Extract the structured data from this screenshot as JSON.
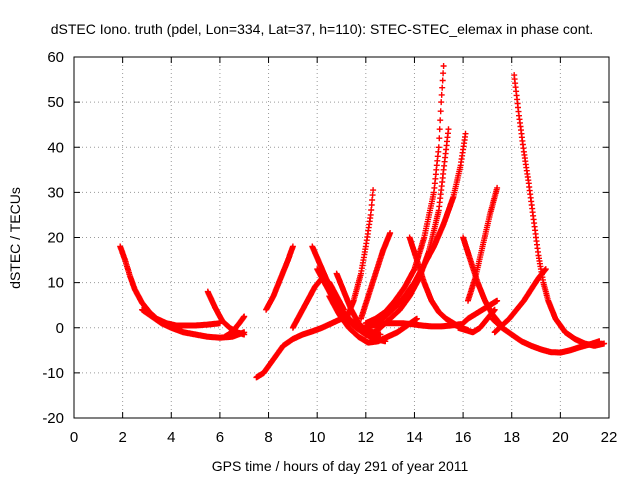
{
  "chart_data": {
    "type": "scatter",
    "title": "dSTEC Iono. truth (pdel, Lon=334, Lat=37, h=110): STEC-STEC_elemax in phase cont.",
    "xlabel": "GPS time / hours of day 291 of year 2011",
    "ylabel": "dSTEC  / TECUs",
    "xlim": [
      0,
      22
    ],
    "ylim": [
      -20,
      60
    ],
    "xticks": [
      0,
      2,
      4,
      6,
      8,
      10,
      12,
      14,
      16,
      18,
      20,
      22
    ],
    "yticks": [
      -20,
      -10,
      0,
      10,
      20,
      30,
      40,
      50,
      60
    ],
    "grid": true,
    "marker": "plus",
    "color": "#ff0000",
    "series": [
      {
        "x": [
          1.9,
          2.1,
          2.3,
          2.5,
          2.8,
          3.1,
          3.4,
          3.8,
          4.2,
          4.6,
          5.0,
          5.5,
          6.0
        ],
        "y": [
          18,
          15,
          11.5,
          8.5,
          5.5,
          3.5,
          2,
          1,
          0.5,
          0.5,
          0.5,
          0.7,
          1
        ]
      },
      {
        "x": [
          2.8,
          3.2,
          3.6,
          4.0,
          4.5,
          5.0,
          5.5,
          6.0,
          6.5,
          7.0
        ],
        "y": [
          4,
          2.5,
          1,
          0,
          -1,
          -1.5,
          -2,
          -2.2,
          -2,
          -1
        ]
      },
      {
        "x": [
          5.5,
          5.8,
          6.1,
          6.4,
          6.7,
          7.0
        ],
        "y": [
          8,
          4.5,
          1.5,
          0,
          -1,
          -1.5
        ]
      },
      {
        "x": [
          6.2,
          6.5,
          6.8,
          7.0
        ],
        "y": [
          -2,
          -1,
          1,
          2.5
        ]
      },
      {
        "x": [
          7.5,
          7.8,
          8.2,
          8.6,
          9.0,
          9.4,
          9.8,
          10.2,
          10.6,
          11.0
        ],
        "y": [
          -11,
          -10,
          -7,
          -4,
          -2.5,
          -1.5,
          -0.8,
          0,
          1,
          2
        ]
      },
      {
        "x": [
          7.9,
          8.2,
          8.5,
          8.8,
          9.0
        ],
        "y": [
          4,
          7,
          11,
          15,
          18
        ]
      },
      {
        "x": [
          9.0,
          9.3,
          9.6,
          9.9,
          10.2,
          10.5,
          10.8,
          11.1
        ],
        "y": [
          0,
          3,
          6,
          9,
          11,
          10,
          7,
          4
        ]
      },
      {
        "x": [
          9.8,
          10.2,
          10.6,
          11.0,
          11.4,
          11.8,
          12.2,
          12.6
        ],
        "y": [
          18,
          13,
          8,
          4,
          1.5,
          0,
          -1,
          -1.5
        ]
      },
      {
        "x": [
          10.0,
          10.4,
          10.8,
          11.2,
          11.6,
          12.0,
          12.4,
          12.8
        ],
        "y": [
          13,
          9,
          5,
          2,
          0,
          -1.5,
          -2.5,
          -3
        ]
      },
      {
        "x": [
          10.5,
          10.9,
          11.3,
          11.7,
          12.1,
          12.5,
          12.9,
          13.3,
          13.7,
          14.1
        ],
        "y": [
          7,
          3,
          0,
          -2,
          -3.3,
          -3,
          -2,
          -1,
          0.5,
          2
        ]
      },
      {
        "x": [
          10.8,
          11.1,
          11.4,
          11.7,
          12.0,
          12.3
        ],
        "y": [
          12,
          8,
          4,
          1,
          -0.5,
          -1
        ]
      },
      {
        "x": [
          11.2,
          11.5,
          11.8,
          12.0,
          12.2,
          12.3
        ],
        "y": [
          2,
          6,
          12,
          18,
          25,
          30.5
        ]
      },
      {
        "x": [
          11.8,
          12.1,
          12.4,
          12.7,
          13.0
        ],
        "y": [
          2,
          7,
          12,
          17,
          21
        ]
      },
      {
        "x": [
          11.9,
          12.3,
          12.7,
          13.1,
          13.5,
          13.9,
          14.3,
          14.7,
          15.1,
          15.5,
          15.9
        ],
        "y": [
          0,
          0.5,
          1,
          1,
          1,
          0.8,
          0.5,
          0.3,
          0.3,
          0.5,
          0.8
        ]
      },
      {
        "x": [
          12.0,
          12.4,
          12.8,
          13.2,
          13.6,
          14.0,
          14.4,
          14.8,
          15.0,
          15.1,
          15.2
        ],
        "y": [
          1,
          2,
          3.5,
          6,
          9,
          13,
          20,
          30,
          40,
          50,
          58
        ]
      },
      {
        "x": [
          12.2,
          12.6,
          13.0,
          13.4,
          13.8,
          14.2,
          14.6,
          15.0,
          15.2,
          15.4
        ],
        "y": [
          -1.5,
          0,
          2,
          4,
          7,
          11,
          17,
          26,
          35,
          44
        ]
      },
      {
        "x": [
          12.4,
          12.8,
          13.2,
          13.6,
          14.0,
          14.4,
          14.8,
          15.2,
          15.6,
          15.9,
          16.1
        ],
        "y": [
          1,
          2.5,
          4.5,
          7,
          10,
          14,
          18,
          23,
          29,
          36,
          43
        ]
      },
      {
        "x": [
          13.8,
          14.1,
          14.4,
          14.7,
          15.0,
          15.3,
          15.6,
          15.9,
          16.2
        ],
        "y": [
          20,
          15,
          10,
          6,
          3.5,
          2,
          1,
          0,
          -0.5
        ]
      },
      {
        "x": [
          16.0,
          16.3,
          16.6,
          16.9,
          17.2,
          17.5
        ],
        "y": [
          20,
          15,
          10,
          6,
          3,
          1
        ]
      },
      {
        "x": [
          16.2,
          16.5,
          16.8,
          17.1,
          17.4
        ],
        "y": [
          6,
          11,
          18,
          25,
          31
        ]
      },
      {
        "x": [
          15.9,
          16.2,
          16.5,
          16.8,
          17.1,
          17.4
        ],
        "y": [
          0.5,
          2,
          3,
          4,
          5,
          6
        ]
      },
      {
        "x": [
          15.8,
          16.1,
          16.4,
          16.7,
          17.0,
          17.3
        ],
        "y": [
          0,
          -0.5,
          -1,
          0,
          2,
          4
        ]
      },
      {
        "x": [
          17.3,
          17.6,
          17.9,
          18.2,
          18.5,
          18.8,
          19.1,
          19.4
        ],
        "y": [
          -1,
          0.5,
          2,
          4,
          6,
          8.5,
          11,
          13
        ]
      },
      {
        "x": [
          17.2,
          17.6,
          18.0,
          18.4,
          18.8,
          19.2,
          19.6,
          20.0,
          20.4,
          20.8,
          21.2,
          21.6
        ],
        "y": [
          2,
          0,
          -1.5,
          -3,
          -4,
          -4.8,
          -5.4,
          -5.5,
          -5,
          -4.3,
          -3.7,
          -3
        ]
      },
      {
        "x": [
          18.1,
          18.3,
          18.5,
          18.7,
          18.9,
          19.1,
          19.3,
          19.5,
          19.8,
          20.2,
          20.6,
          21.0,
          21.4,
          21.8
        ],
        "y": [
          56,
          47,
          39,
          32,
          24,
          16,
          10,
          6,
          2,
          -1,
          -2.5,
          -3.5,
          -4,
          -3.5
        ]
      }
    ]
  }
}
